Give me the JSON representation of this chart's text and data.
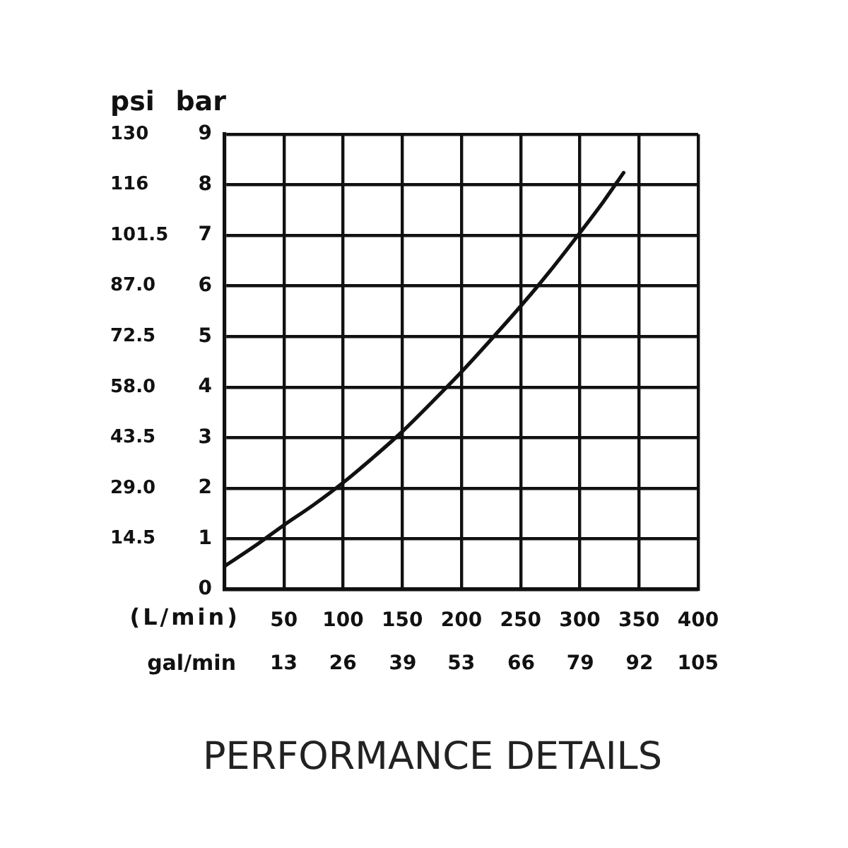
{
  "chart_data": {
    "type": "line",
    "title": "PERFORMANCE DETAILS",
    "xlabel": "(L/min)",
    "x2label": "gal/min",
    "ylabel": "bar",
    "y2label": "psi",
    "x": [
      0,
      25,
      50,
      75,
      100,
      125,
      150,
      175,
      200,
      225,
      250,
      275,
      300,
      320,
      337
    ],
    "values": [
      0.46,
      0.85,
      1.27,
      1.67,
      2.11,
      2.6,
      3.12,
      3.7,
      4.3,
      4.94,
      5.6,
      6.3,
      7.05,
      7.67,
      8.24
    ],
    "color": "#111111",
    "xlim": [
      0,
      400
    ],
    "xticks": [
      50,
      100,
      150,
      200,
      250,
      300,
      350,
      400
    ],
    "x2lim": [
      0,
      105.04
    ],
    "x2ticks": [
      {
        "value": 13.13,
        "label": "13"
      },
      {
        "value": 26.26,
        "label": "26"
      },
      {
        "value": 39.39,
        "label": "39"
      },
      {
        "value": 52.52,
        "label": "53"
      },
      {
        "value": 65.65,
        "label": "66"
      },
      {
        "value": 78.78,
        "label": "79"
      },
      {
        "value": 91.91,
        "label": "92"
      },
      {
        "value": 105.04,
        "label": "105"
      }
    ],
    "ylim": [
      0,
      9
    ],
    "yticks": [
      0,
      1,
      2,
      3,
      4,
      5,
      6,
      7,
      8,
      9
    ],
    "y2lim": [
      0,
      130.5
    ],
    "y2ticks": [
      14.5,
      {
        "value": 29,
        "label": "29.0"
      },
      43.5,
      {
        "value": 58,
        "label": "58.0"
      },
      72.5,
      {
        "value": 87,
        "label": "87.0"
      },
      101.5,
      116,
      {
        "value": 130.5,
        "label": "130"
      }
    ],
    "grid": true
  }
}
